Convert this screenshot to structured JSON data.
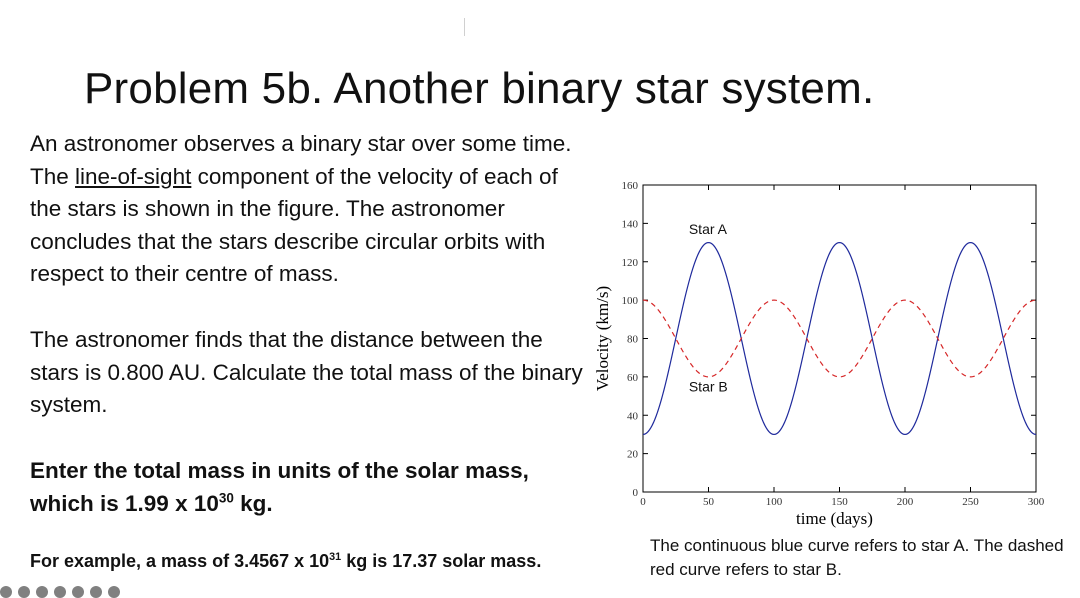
{
  "slide": {
    "title": "Problem 5b. Another binary star system.",
    "p1": {
      "a": "An astronomer observes a binary star over some time. The ",
      "link": "line-of-sight",
      "b": " component of the velocity of each of the stars is shown in the figure. The astronomer concludes that the stars describe circular orbits with respect to their centre of mass."
    },
    "p2": "The astronomer finds that the distance between the stars is 0.800 AU. Calculate the total mass of the binary system.",
    "p3": {
      "a": "Enter the total mass in units of the solar mass, which is 1.99 x 10",
      "exp": "30",
      "b": " kg."
    },
    "p4": {
      "a": "For example, a mass of 3.4567 x 10",
      "exp": "31",
      "b": " kg is 17.37 solar mass."
    },
    "caption": "The continuous blue curve refers to star A. The dashed red curve refers to star B."
  },
  "chart_data": {
    "type": "line",
    "xlabel": "time (days)",
    "ylabel": "Velocity (km/s)",
    "xlim": [
      0,
      300
    ],
    "ylim": [
      0,
      160
    ],
    "xticks": [
      0,
      50,
      100,
      150,
      200,
      250,
      300
    ],
    "yticks": [
      0,
      20,
      40,
      60,
      80,
      100,
      120,
      140,
      160
    ],
    "grid": false,
    "annotations": [
      {
        "text": "Star A",
        "x": 35,
        "y": 137
      },
      {
        "text": "Star B",
        "x": 35,
        "y": 55
      }
    ],
    "series": [
      {
        "name": "Star A",
        "style": "solid",
        "color": "#1f2a9c",
        "x": [
          0,
          25,
          50,
          75,
          100,
          125,
          150,
          175,
          200,
          225,
          250,
          275,
          300
        ],
        "values": [
          30,
          80,
          130,
          80,
          30,
          80,
          130,
          80,
          30,
          80,
          130,
          80,
          30
        ]
      },
      {
        "name": "Star B",
        "style": "dashed",
        "color": "#d62728",
        "x": [
          0,
          25,
          50,
          75,
          100,
          125,
          150,
          175,
          200,
          225,
          250,
          275,
          300
        ],
        "values": [
          100,
          80,
          60,
          80,
          100,
          80,
          60,
          80,
          100,
          80,
          60,
          80,
          100
        ]
      }
    ]
  }
}
